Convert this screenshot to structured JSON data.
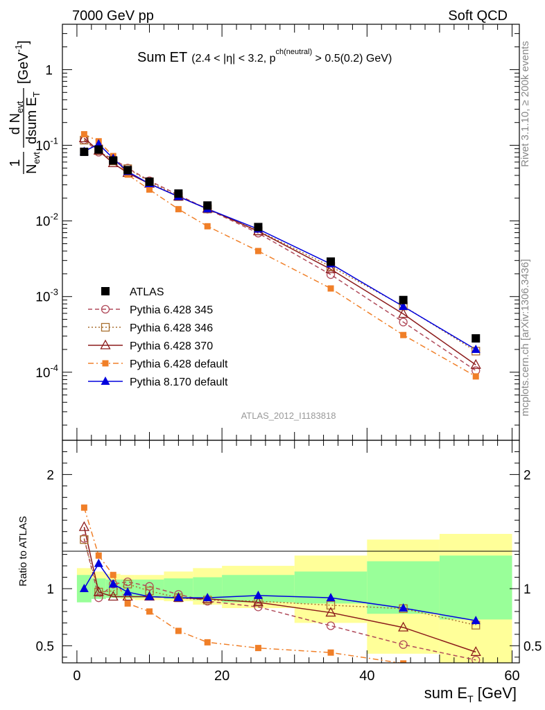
{
  "header": {
    "energy": "7000 GeV pp",
    "process": "Soft QCD"
  },
  "side_labels": {
    "rivet": "Rivet 3.1.10, ≥ 200k events",
    "source": "mcplots.cern.ch [arXiv:1306.3436]"
  },
  "watermark": "ATLAS_2012_I1183818",
  "chart_data": {
    "type": "line",
    "title": "Sum ET",
    "title_cut_a": "(2.4 < |η| < 3.2, p",
    "title_cut_sup": "ch(neutral)",
    "title_cut_b": " > 0.5(0.2) GeV)",
    "upper_ylabel": {
      "frac_num": "1",
      "frac_den_main": "N",
      "frac_den_sub": "evt",
      "deriv_num_main": "d N",
      "deriv_num_sub": "evt",
      "deriv_den_main": "dsum E",
      "deriv_den_sub": "T",
      "unit_main": "[GeV",
      "unit_sup": "-1",
      "unit_end": "]"
    },
    "xlabel_main": "sum E",
    "xlabel_sub": "T",
    "xlabel_unit": " [GeV]",
    "lower_ylabel": "Ratio to ATLAS",
    "xlim": [
      -2,
      61
    ],
    "x_ticks": [
      0,
      20,
      40,
      60
    ],
    "upper_ylim_log10": [
      -4.9,
      0.6
    ],
    "upper_ticks": [
      {
        "base": "1",
        "exp": ""
      },
      {
        "base": "10",
        "exp": "-1"
      },
      {
        "base": "10",
        "exp": "-2"
      },
      {
        "base": "10",
        "exp": "-3"
      },
      {
        "base": "10",
        "exp": "-4"
      }
    ],
    "ratio_ylim": [
      0.35,
      2.3
    ],
    "ratio_ticks": [
      "0.5",
      "1",
      "2"
    ],
    "legend_position": "lower-left",
    "bins": [
      0,
      2,
      4,
      6,
      8,
      12,
      16,
      20,
      30,
      40,
      50,
      60
    ],
    "x": [
      1,
      3,
      5,
      7,
      10,
      14,
      18,
      25,
      35,
      45,
      55
    ],
    "bands": {
      "stat_low": [
        0.88,
        0.91,
        0.92,
        0.92,
        0.92,
        0.91,
        0.9,
        0.88,
        0.87,
        0.78,
        0.73
      ],
      "stat_high": [
        1.12,
        1.09,
        1.08,
        1.08,
        1.08,
        1.09,
        1.1,
        1.12,
        1.15,
        1.24,
        1.29
      ],
      "total_low": [
        0.92,
        0.92,
        0.92,
        0.91,
        0.9,
        0.89,
        0.86,
        0.83,
        0.7,
        0.43,
        0.33
      ],
      "total_high": [
        1.18,
        1.15,
        1.13,
        1.12,
        1.12,
        1.15,
        1.18,
        1.2,
        1.29,
        1.43,
        1.48
      ]
    },
    "series": [
      {
        "name": "ATLAS",
        "color": "#000000",
        "marker": "square",
        "line": "none",
        "values": [
          0.082,
          0.088,
          0.063,
          0.047,
          0.033,
          0.023,
          0.016,
          0.0083,
          0.0029,
          0.0009,
          0.00028
        ],
        "ratio": [
          1,
          1,
          1,
          1,
          1,
          1,
          1,
          1,
          1,
          1,
          1
        ]
      },
      {
        "name": "Pythia 6.428 345",
        "color": "#b04a5a",
        "marker": "circle-open",
        "line": "dash",
        "values": [
          0.118,
          0.081,
          0.066,
          0.05,
          0.034,
          0.022,
          0.0143,
          0.0069,
          0.00195,
          0.00046,
          0.000105
        ],
        "ratio": [
          1.44,
          0.92,
          1.04,
          1.06,
          1.02,
          0.95,
          0.89,
          0.84,
          0.675,
          0.51,
          0.375
        ]
      },
      {
        "name": "Pythia 6.428 346",
        "color": "#a86e2e",
        "marker": "square-open",
        "line": "dot",
        "values": [
          0.117,
          0.085,
          0.062,
          0.049,
          0.033,
          0.021,
          0.0144,
          0.0074,
          0.0025,
          0.00075,
          0.00019
        ],
        "ratio": [
          1.43,
          0.97,
          0.98,
          1.04,
          0.98,
          0.92,
          0.9,
          0.89,
          0.855,
          0.825,
          0.68
        ]
      },
      {
        "name": "Pythia 6.428 370",
        "color": "#8b1a1a",
        "marker": "triangle-open",
        "line": "solid",
        "values": [
          0.124,
          0.085,
          0.058,
          0.043,
          0.031,
          0.021,
          0.0145,
          0.0073,
          0.0023,
          0.00059,
          0.000125
        ],
        "ratio": [
          1.54,
          0.97,
          0.93,
          0.93,
          0.93,
          0.92,
          0.91,
          0.88,
          0.79,
          0.66,
          0.445
        ]
      },
      {
        "name": "Pythia 6.428 default",
        "color": "#f07f28",
        "marker": "square-small",
        "line": "dashdot",
        "values": [
          0.14,
          0.113,
          0.072,
          0.041,
          0.026,
          0.0143,
          0.0085,
          0.004,
          0.00128,
          0.00031,
          8.8e-05
        ],
        "ratio": [
          1.71,
          1.29,
          1.12,
          0.87,
          0.8,
          0.63,
          0.53,
          0.48,
          0.44,
          0.345,
          0.31
        ]
      },
      {
        "name": "Pythia 8.170 default",
        "color": "#0000dd",
        "marker": "triangle",
        "line": "solid",
        "values": [
          0.083,
          0.104,
          0.067,
          0.045,
          0.031,
          0.021,
          0.0144,
          0.0078,
          0.0027,
          0.00074,
          0.0002
        ],
        "ratio": [
          1.0,
          1.22,
          1.04,
          0.97,
          0.93,
          0.92,
          0.92,
          0.94,
          0.92,
          0.83,
          0.72
        ],
        "ratio_err": [
          0,
          0,
          0,
          0,
          0,
          0,
          0,
          0,
          0,
          0.02,
          0.035
        ]
      }
    ]
  }
}
